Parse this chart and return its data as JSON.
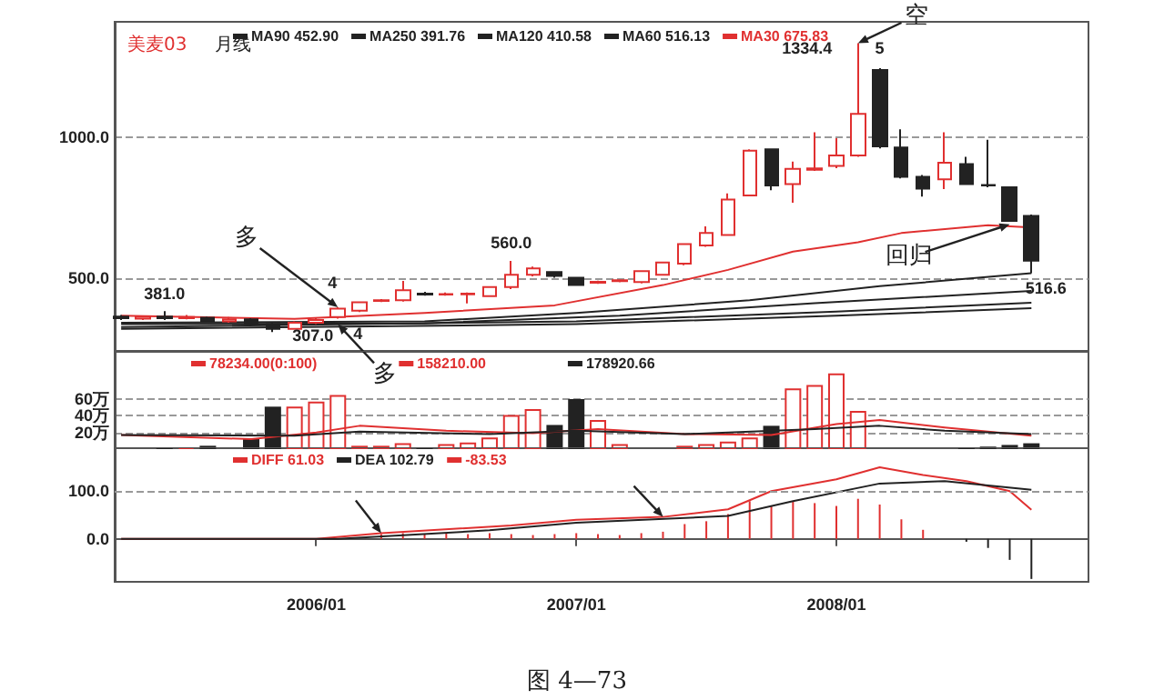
{
  "chart_data": [
    {
      "type": "candlestick",
      "title": "美麦03",
      "subtitle": "月线",
      "legend": "top",
      "grid": "y",
      "marker": "none",
      "tick_labels": "y",
      "x": [
        "2005-04",
        "2005-05",
        "2005-06",
        "2005-07",
        "2005-08",
        "2005-09",
        "2005-10",
        "2005-11",
        "2005-12",
        "2006-01",
        "2006-02",
        "2006-03",
        "2006-04",
        "2006-05",
        "2006-06",
        "2006-07",
        "2006-08",
        "2006-09",
        "2006-10",
        "2006-11",
        "2006-12",
        "2007-01",
        "2007-02",
        "2007-03",
        "2007-04",
        "2007-05",
        "2007-06",
        "2007-07",
        "2007-08",
        "2007-09",
        "2007-10",
        "2007-11",
        "2007-12",
        "2008-01",
        "2008-02",
        "2008-03",
        "2008-04",
        "2008-05",
        "2008-06",
        "2008-07",
        "2008-08",
        "2008-09",
        "2008-10"
      ],
      "ohlc": [
        [
          362,
          368,
          350,
          356
        ],
        [
          355,
          366,
          350,
          362
        ],
        [
          362,
          381,
          350,
          356
        ],
        [
          356,
          368,
          352,
          360
        ],
        [
          358,
          362,
          340,
          345
        ],
        [
          345,
          360,
          340,
          352
        ],
        [
          352,
          356,
          328,
          335
        ],
        [
          335,
          340,
          307,
          318
        ],
        [
          318,
          345,
          315,
          340
        ],
        [
          340,
          356,
          335,
          350
        ],
        [
          360,
          395,
          355,
          390
        ],
        [
          383,
          416,
          378,
          413
        ],
        [
          418,
          424,
          414,
          420
        ],
        [
          420,
          489,
          415,
          456
        ],
        [
          444,
          450,
          436,
          440
        ],
        [
          440,
          448,
          436,
          442
        ],
        [
          441,
          448,
          409,
          444
        ],
        [
          435,
          467,
          435,
          467
        ],
        [
          467,
          560,
          460,
          511
        ],
        [
          511,
          540,
          505,
          533
        ],
        [
          520,
          524,
          500,
          507
        ],
        [
          500,
          500,
          474,
          474
        ],
        [
          482,
          490,
          478,
          486
        ],
        [
          488,
          494,
          484,
          491
        ],
        [
          485,
          526,
          480,
          524
        ],
        [
          511,
          556,
          508,
          554
        ],
        [
          550,
          622,
          545,
          620
        ],
        [
          615,
          683,
          610,
          659
        ],
        [
          652,
          800,
          650,
          778
        ],
        [
          793,
          957,
          790,
          952
        ],
        [
          957,
          960,
          811,
          828
        ],
        [
          833,
          913,
          767,
          887
        ],
        [
          884,
          1017,
          880,
          889
        ],
        [
          898,
          996,
          890,
          935
        ],
        [
          935,
          1334.4,
          930,
          1083
        ],
        [
          1239,
          1245,
          960,
          967
        ],
        [
          963,
          1028,
          853,
          859
        ],
        [
          859,
          865,
          789,
          817
        ],
        [
          850,
          1017,
          815,
          909
        ],
        [
          904,
          930,
          830,
          833
        ],
        [
          830,
          991,
          822,
          828
        ],
        [
          822,
          825,
          700,
          702
        ],
        [
          720,
          725,
          516.6,
          561
        ]
      ],
      "colors": [
        "#222222",
        "#e03030",
        "#222222",
        "#e03030",
        "#222222",
        "#e03030",
        "#222222",
        "#222222",
        "#e03030",
        "#e03030",
        "#e03030",
        "#e03030",
        "#e03030",
        "#e03030",
        "#222222",
        "#e03030",
        "#e03030",
        "#e03030",
        "#e03030",
        "#e03030",
        "#222222",
        "#222222",
        "#e03030",
        "#e03030",
        "#e03030",
        "#e03030",
        "#e03030",
        "#e03030",
        "#e03030",
        "#e03030",
        "#222222",
        "#e03030",
        "#e03030",
        "#e03030",
        "#e03030",
        "#222222",
        "#222222",
        "#222222",
        "#e03030",
        "#222222",
        "#222222",
        "#222222",
        "#222222"
      ],
      "xlim": [
        "2005-03-22",
        "2008-12-20"
      ],
      "ylim": [
        240,
        1410
      ],
      "yticks": [
        {
          "value": 500,
          "label": "500.0"
        },
        {
          "value": 1000,
          "label": "1000.0"
        }
      ],
      "series": [
        {
          "type": "line",
          "name": "MA90 452.90",
          "color": "#222222",
          "x": [
            "2005-04",
            "2006-06",
            "2007-03",
            "2007-12",
            "2008-10"
          ],
          "values": [
            335,
            338,
            365,
            410,
            453
          ]
        },
        {
          "type": "line",
          "name": "MA250 391.76",
          "color": "#222222",
          "x": [
            "2005-04",
            "2007-01",
            "2008-01",
            "2008-10"
          ],
          "values": [
            318,
            335,
            365,
            392
          ]
        },
        {
          "type": "line",
          "name": "MA120 410.58",
          "color": "#222222",
          "x": [
            "2005-04",
            "2007-01",
            "2008-01",
            "2008-10"
          ],
          "values": [
            325,
            345,
            380,
            411
          ]
        },
        {
          "type": "line",
          "name": "MA60 516.13",
          "color": "#222222",
          "x": [
            "2005-04",
            "2006-06",
            "2007-01",
            "2007-09",
            "2008-03",
            "2008-10"
          ],
          "values": [
            340,
            345,
            375,
            420,
            470,
            516
          ]
        },
        {
          "type": "line",
          "name": "MA30 675.83",
          "color": "#e03030",
          "x": [
            "2005-04",
            "2005-12",
            "2006-06",
            "2006-12",
            "2007-05",
            "2007-08",
            "2007-11",
            "2008-02",
            "2008-04",
            "2008-08",
            "2008-09-20"
          ],
          "values": [
            365,
            354,
            375,
            402,
            474,
            528,
            593,
            626,
            659,
            687,
            680
          ]
        }
      ],
      "annotations": [
        {
          "text": "381.0",
          "x": "2005-06",
          "y": 381
        },
        {
          "text": "307.0",
          "x": "2005-11",
          "y": 307
        },
        {
          "text": "560.0",
          "x": "2006-10",
          "y": 560
        },
        {
          "text": "1334.4",
          "x": "2008-02",
          "y": 1334.4
        },
        {
          "text": "516.6",
          "x": "2008-10",
          "y": 516.6
        },
        {
          "text": "4",
          "x": "2006-02",
          "y": 395
        },
        {
          "text": "多",
          "x": "2006-02",
          "y": 395
        },
        {
          "text": "4",
          "x": "2006-02",
          "y": 335
        },
        {
          "text": "多",
          "x": "2006-02",
          "y": 335
        },
        {
          "text": "5",
          "x": "2008-03",
          "y": 1239
        },
        {
          "text": "空",
          "x": "2008-02",
          "y": 1334.4
        },
        {
          "text": "回归",
          "x": "2008-09",
          "y": 690
        }
      ]
    },
    {
      "type": "bar",
      "legend": "top left",
      "grid": "y",
      "marker": "none",
      "tick_labels": "y",
      "xlim": [
        "2005-03-22",
        "2008-12-20"
      ],
      "ylim": [
        0,
        118
      ],
      "yticks": [
        {
          "value": 20,
          "label": "20万"
        },
        {
          "value": 40,
          "label": "40万"
        },
        {
          "value": 60,
          "label": "60万"
        }
      ],
      "series": [
        {
          "name": "78234.00(0:100)",
          "color": "#e03030",
          "x": [
            "2005-06",
            "2005-07",
            "2005-08",
            "2005-10",
            "2005-11",
            "2005-12",
            "2006-01",
            "2006-02",
            "2006-03",
            "2006-04",
            "2006-05",
            "2006-06",
            "2006-07",
            "2006-08",
            "2006-09",
            "2006-10",
            "2006-11",
            "2006-12",
            "2007-01",
            "2007-02",
            "2007-03",
            "2007-06",
            "2007-07",
            "2007-08",
            "2007-09",
            "2007-10",
            "2007-11",
            "2007-12",
            "2008-01",
            "2008-02",
            "2008-07",
            "2008-08",
            "2008-09",
            "2008-10"
          ],
          "colors": [
            "#222222",
            "#e03030",
            "#222222",
            "#222222",
            "#222222",
            "#e03030",
            "#e03030",
            "#e03030",
            "#e03030",
            "#e03030",
            "#e03030",
            "#222222",
            "#e03030",
            "#e03030",
            "#e03030",
            "#e03030",
            "#e03030",
            "#222222",
            "#222222",
            "#e03030",
            "#e03030",
            "#e03030",
            "#e03030",
            "#e03030",
            "#e03030",
            "#222222",
            "#e03030",
            "#e03030",
            "#e03030",
            "#e03030",
            "#222222",
            "#222222",
            "#222222",
            "#222222"
          ],
          "values": [
            2,
            2,
            4,
            12,
            51,
            51,
            57,
            65,
            4,
            4,
            7,
            2,
            6,
            8,
            14,
            41,
            48,
            29,
            60,
            35,
            6,
            4,
            6,
            9,
            14,
            28,
            73,
            77,
            91,
            46,
            2,
            3,
            5,
            7
          ]
        },
        {
          "type": "line",
          "name": "158210.00",
          "color": "#e03030",
          "x": [
            "2005-04",
            "2005-10",
            "2006-01",
            "2006-03",
            "2006-07",
            "2006-11",
            "2007-02",
            "2007-06",
            "2007-10",
            "2008-01",
            "2008-03",
            "2008-06",
            "2008-10"
          ],
          "values": [
            17,
            12,
            20,
            28,
            22,
            19,
            24,
            18,
            17,
            30,
            35,
            26,
            16
          ]
        },
        {
          "type": "line",
          "name": "178920.66",
          "color": "#222222",
          "x": [
            "2005-04",
            "2005-12",
            "2006-03",
            "2006-09",
            "2007-01",
            "2007-06",
            "2007-12",
            "2008-03",
            "2008-06",
            "2008-10"
          ],
          "values": [
            17,
            16,
            21,
            18,
            22,
            18,
            24,
            28,
            22,
            18
          ]
        }
      ]
    },
    {
      "type": "line",
      "legend": "top left",
      "marker": "none",
      "xlim": [
        "2005-03-22",
        "2008-12-20"
      ],
      "ylim": [
        -90,
        192
      ],
      "yticks": [
        {
          "value": 0,
          "label": "0.0"
        },
        {
          "value": 100,
          "label": "100.0"
        }
      ],
      "xticks": [
        {
          "value": "2006-01",
          "label": "2006/01"
        },
        {
          "value": "2007-01",
          "label": "2007/01"
        },
        {
          "value": "2008-01",
          "label": "2008/01"
        }
      ],
      "ref_lines": [
        {
          "axis": "y",
          "value": 100,
          "color": "#999999",
          "line_style": "dashed"
        }
      ],
      "series": [
        {
          "name": "DIFF 61.03",
          "color": "#e03030",
          "x": [
            "2005-04",
            "2006-01",
            "2006-04",
            "2006-10",
            "2007-01",
            "2007-05",
            "2007-08",
            "2007-10",
            "2008-01",
            "2008-03",
            "2008-05",
            "2008-07",
            "2008-09",
            "2008-10"
          ],
          "values": [
            0,
            0,
            12,
            28,
            40,
            46,
            62,
            100,
            125,
            150,
            134,
            121,
            100,
            61
          ]
        },
        {
          "name": "DEA 102.79",
          "color": "#222222",
          "x": [
            "2005-04",
            "2006-02",
            "2006-09",
            "2007-01",
            "2007-08",
            "2007-11",
            "2008-03",
            "2008-06",
            "2008-10"
          ],
          "values": [
            0,
            0,
            18,
            34,
            48,
            79,
            116,
            121,
            103
          ]
        },
        {
          "type": "bar",
          "name": "-83.53",
          "color": "#e03030",
          "x": [
            "2006-04",
            "2006-05",
            "2006-06",
            "2006-07",
            "2006-08",
            "2006-09",
            "2006-10",
            "2006-11",
            "2006-12",
            "2007-01",
            "2007-02",
            "2007-03",
            "2007-04",
            "2007-05",
            "2007-06",
            "2007-07",
            "2007-08",
            "2007-09",
            "2007-10",
            "2007-11",
            "2007-12",
            "2008-01",
            "2008-02",
            "2008-03",
            "2008-04",
            "2008-05",
            "2008-07",
            "2008-08",
            "2008-09",
            "2008-10"
          ],
          "colors": [
            "#e03030",
            "#e03030",
            "#e03030",
            "#e03030",
            "#e03030",
            "#e03030",
            "#e03030",
            "#e03030",
            "#e03030",
            "#e03030",
            "#e03030",
            "#e03030",
            "#e03030",
            "#e03030",
            "#e03030",
            "#e03030",
            "#e03030",
            "#e03030",
            "#e03030",
            "#e03030",
            "#e03030",
            "#e03030",
            "#e03030",
            "#e03030",
            "#e03030",
            "#e03030",
            "#222222",
            "#222222",
            "#222222",
            "#222222"
          ],
          "values": [
            10,
            12,
            10,
            12,
            10,
            12,
            10,
            8,
            10,
            12,
            10,
            8,
            12,
            15,
            31,
            37,
            52,
            79,
            69,
            79,
            75,
            69,
            84,
            72,
            41,
            19,
            -6,
            -19,
            -44,
            -84
          ]
        }
      ],
      "annotations": [
        "图 4—73"
      ]
    }
  ]
}
